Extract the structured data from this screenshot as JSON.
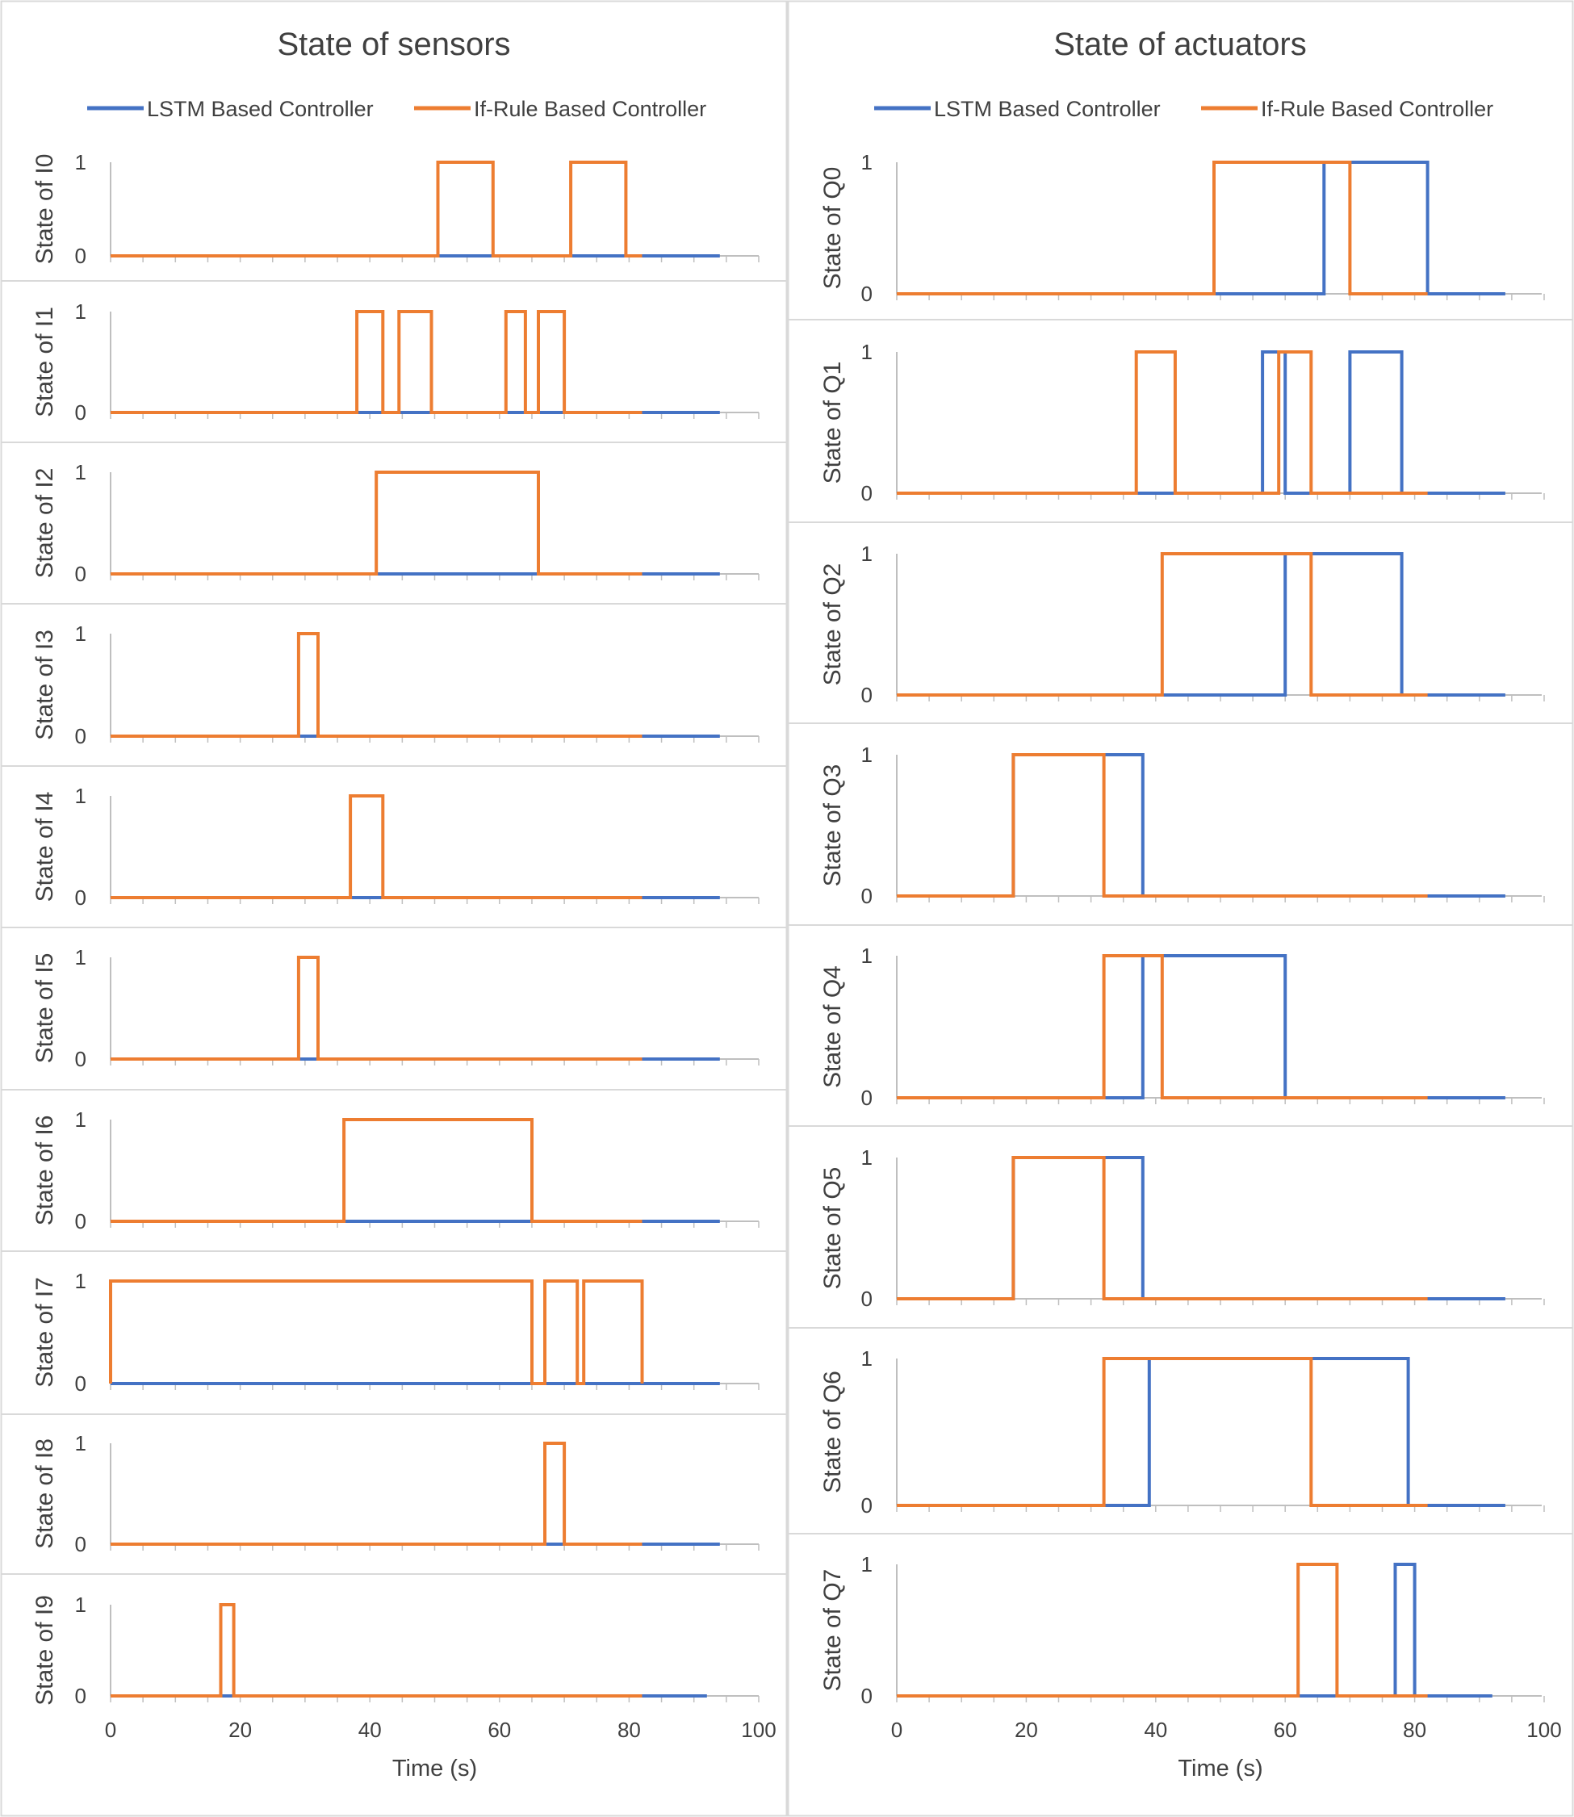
{
  "colors": {
    "lstm": "#4472C4",
    "rule": "#ED7D31",
    "axis": "#BFBFBF",
    "border": "#D9D9D9",
    "text": "#404040"
  },
  "panels": [
    {
      "title": "State of sensors",
      "legend": [
        "LSTM Based Controller",
        "If-Rule Based Controller"
      ]
    },
    {
      "title": "State of actuators",
      "legend": [
        "LSTM Based Controller",
        "If-Rule Based Controller"
      ]
    }
  ],
  "chart_data": [
    {
      "panel": "State of sensors",
      "type": "line",
      "step": true,
      "xlabel": "Time (s)",
      "xlim": [
        0,
        100
      ],
      "xticks": [
        "0",
        "20",
        "40",
        "60",
        "80",
        "100"
      ],
      "ylim": [
        0,
        1
      ],
      "yticks": [
        "0",
        "1"
      ],
      "series_names": [
        "LSTM Based Controller",
        "If-Rule Based Controller"
      ],
      "subplots": [
        {
          "ylabel": "State of I0",
          "end": 94,
          "lstm": [],
          "rule": [
            [
              50.5,
              59
            ],
            [
              71,
              79.5
            ]
          ]
        },
        {
          "ylabel": "State of I1",
          "end": 94,
          "lstm": [],
          "rule": [
            [
              38,
              42
            ],
            [
              44.5,
              49.5
            ],
            [
              61,
              64
            ],
            [
              66,
              70
            ]
          ]
        },
        {
          "ylabel": "State of I2",
          "end": 94,
          "lstm": [],
          "rule": [
            [
              41,
              66
            ]
          ]
        },
        {
          "ylabel": "State of I3",
          "end": 94,
          "lstm": [],
          "rule": [
            [
              29,
              32
            ]
          ]
        },
        {
          "ylabel": "State of I4",
          "end": 94,
          "lstm": [],
          "rule": [
            [
              37,
              42
            ]
          ]
        },
        {
          "ylabel": "State of I5",
          "end": 94,
          "lstm": [],
          "rule": [
            [
              29,
              32
            ]
          ]
        },
        {
          "ylabel": "State of I6",
          "end": 94,
          "lstm": [],
          "rule": [
            [
              36,
              65
            ]
          ]
        },
        {
          "ylabel": "State of I7",
          "end": 94,
          "lstm": [],
          "rule": [
            [
              0,
              65
            ],
            [
              67,
              72
            ],
            [
              73,
              82
            ]
          ]
        },
        {
          "ylabel": "State of I8",
          "end": 94,
          "lstm": [],
          "rule": [
            [
              67,
              70
            ]
          ]
        },
        {
          "ylabel": "State of I9",
          "end": 92,
          "lstm": [],
          "rule": [
            [
              17,
              19
            ]
          ]
        }
      ]
    },
    {
      "panel": "State of actuators",
      "type": "line",
      "step": true,
      "xlabel": "Time (s)",
      "xlim": [
        0,
        100
      ],
      "xticks": [
        "0",
        "20",
        "40",
        "60",
        "80",
        "100"
      ],
      "ylim": [
        0,
        1
      ],
      "yticks": [
        "0",
        "1"
      ],
      "series_names": [
        "LSTM Based Controller",
        "If-Rule Based Controller"
      ],
      "subplots": [
        {
          "ylabel": "State of Q0",
          "end": 94,
          "lstm": [
            [
              66,
              82
            ]
          ],
          "rule": [
            [
              49,
              70
            ]
          ]
        },
        {
          "ylabel": "State of Q1",
          "end": 94,
          "lstm": [
            [
              56.5,
              60
            ],
            [
              70,
              78
            ]
          ],
          "rule": [
            [
              37,
              43
            ],
            [
              59,
              64
            ]
          ]
        },
        {
          "ylabel": "State of Q2",
          "end": 94,
          "lstm": [
            [
              60,
              78
            ]
          ],
          "rule": [
            [
              41,
              64
            ]
          ]
        },
        {
          "ylabel": "State of Q3",
          "end": 94,
          "lstm": [
            [
              18,
              38
            ]
          ],
          "rule": [
            [
              18,
              32
            ]
          ]
        },
        {
          "ylabel": "State of Q4",
          "end": 94,
          "lstm": [
            [
              38,
              60
            ]
          ],
          "rule": [
            [
              32,
              41
            ]
          ]
        },
        {
          "ylabel": "State of Q5",
          "end": 94,
          "lstm": [
            [
              18,
              38
            ]
          ],
          "rule": [
            [
              18,
              32
            ]
          ]
        },
        {
          "ylabel": "State of Q6",
          "end": 94,
          "lstm": [
            [
              39,
              79
            ]
          ],
          "rule": [
            [
              32,
              64
            ]
          ]
        },
        {
          "ylabel": "State of Q7",
          "end": 92,
          "lstm": [
            [
              77,
              80
            ]
          ],
          "rule": [
            [
              62,
              68
            ]
          ]
        }
      ]
    }
  ]
}
